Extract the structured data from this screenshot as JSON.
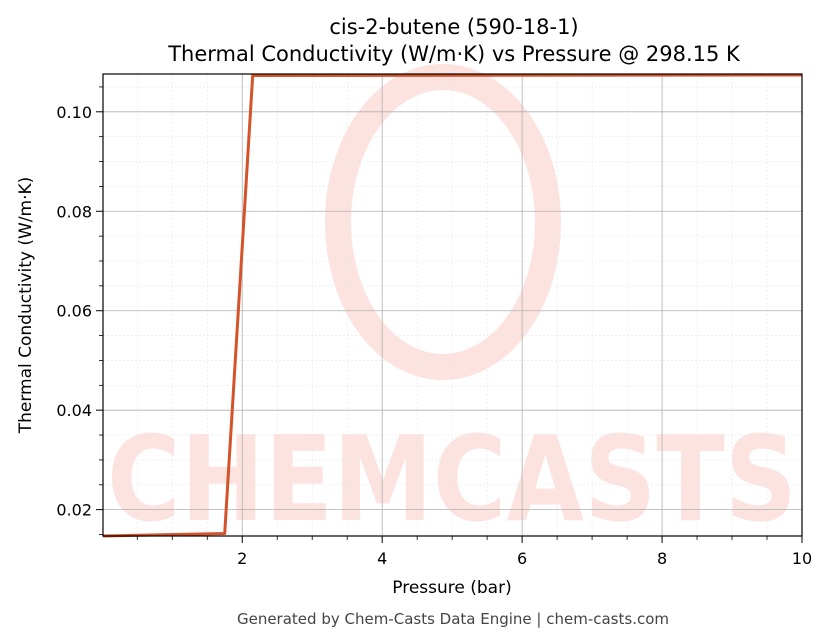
{
  "chart_data": {
    "type": "line",
    "title_line1": "cis-2-butene (590-18-1)",
    "title_line2": "Thermal Conductivity (W/m·K) vs Pressure @ 298.15 K",
    "xlabel": "Pressure (bar)",
    "ylabel": "Thermal Conductivity (W/m·K)",
    "xlim": [
      0.01,
      10
    ],
    "ylim": [
      0.0147,
      0.1076
    ],
    "x_ticks": [
      2,
      4,
      6,
      8,
      10
    ],
    "y_ticks": [
      0.02,
      0.04,
      0.06,
      0.08,
      0.1
    ],
    "x_tick_labels": [
      "2",
      "4",
      "6",
      "8",
      "10"
    ],
    "y_tick_labels": [
      "0.02",
      "0.04",
      "0.06",
      "0.08",
      "0.10"
    ],
    "grid": true,
    "series": [
      {
        "color": "#d4532a",
        "x": [
          0.01,
          1.75,
          2.15,
          10
        ],
        "y": [
          0.0147,
          0.0152,
          0.1073,
          0.1074
        ]
      }
    ]
  },
  "watermark": "CHEMCASTS",
  "footer": "Generated by Chem-Casts Data Engine | chem-casts.com"
}
